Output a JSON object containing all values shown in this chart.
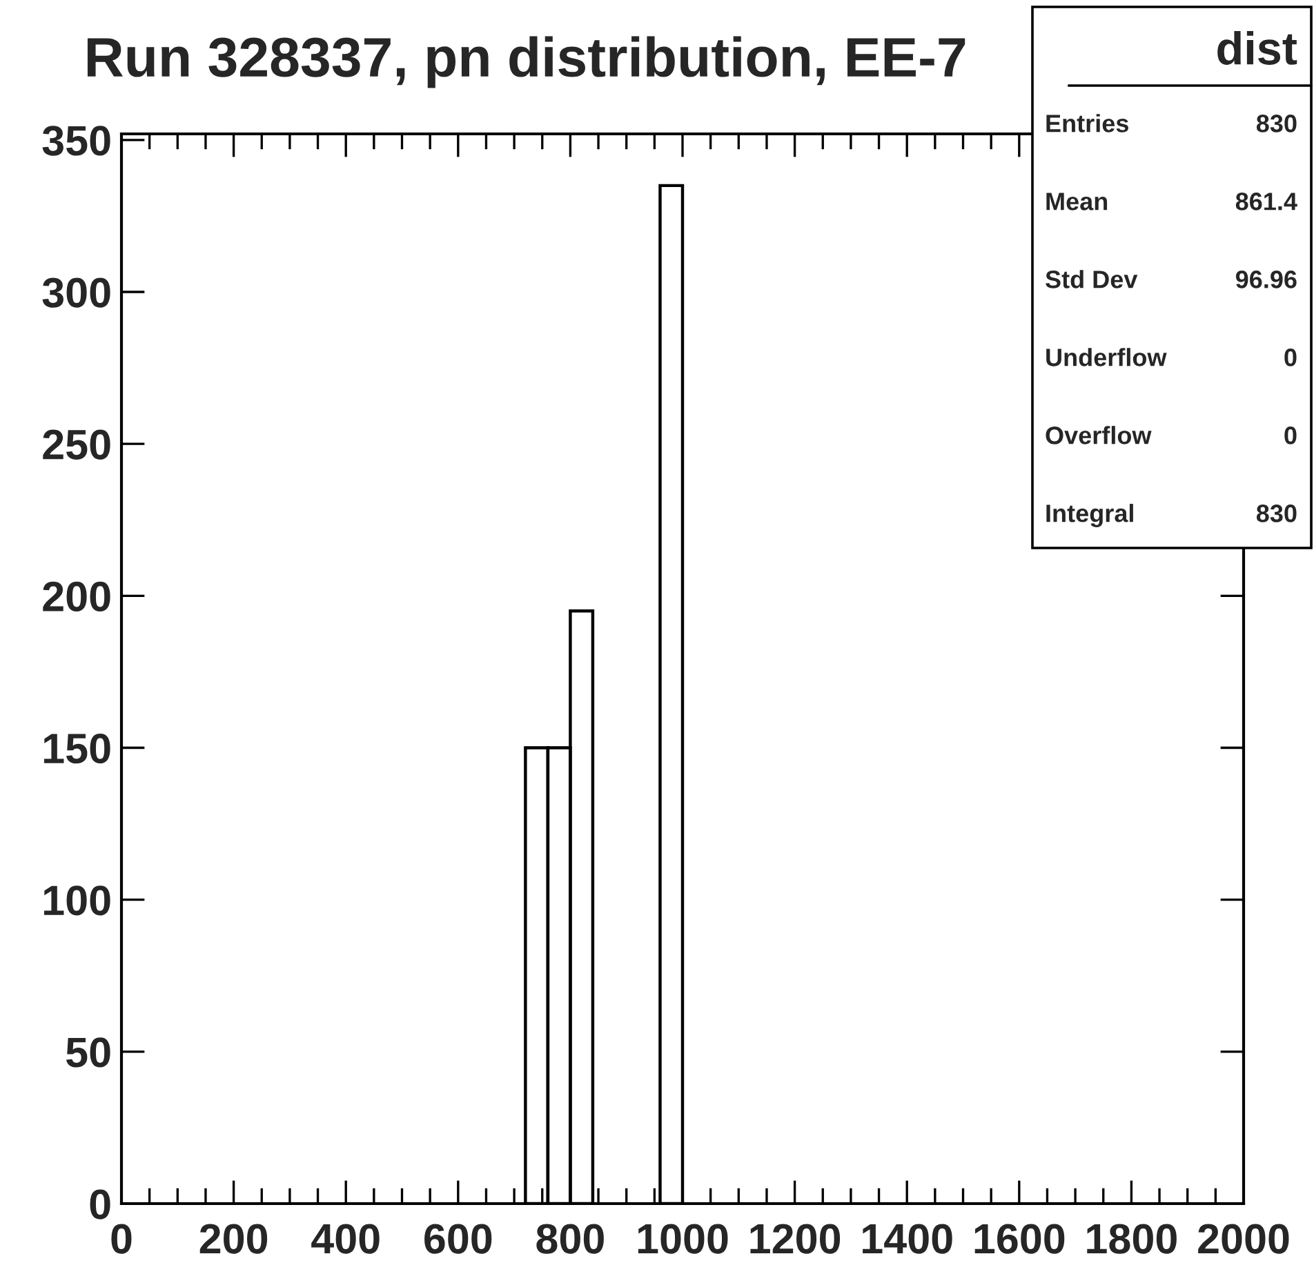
{
  "chart_data": {
    "type": "histogram",
    "title": "Run 328337, pn distribution, EE-7",
    "bins": [
      720,
      760,
      800,
      840,
      880,
      920,
      960,
      1000
    ],
    "values": [
      150,
      150,
      195,
      0,
      0,
      0,
      335
    ],
    "color": "#000000",
    "xlim": [
      0,
      2000
    ],
    "xticks": [
      0,
      200,
      400,
      600,
      800,
      1000,
      1200,
      1400,
      1600,
      1800,
      2000
    ],
    "ylim": [
      0,
      352
    ],
    "yticks": [
      0,
      50,
      100,
      150,
      200,
      250,
      300,
      350
    ],
    "grid": false,
    "legend": false,
    "annotations": [
      "dist",
      "Entries",
      "830",
      "Mean",
      "861.4",
      "Std Dev",
      "96.96",
      "Underflow",
      "0",
      "Overflow",
      "0",
      "Integral",
      "830"
    ]
  }
}
